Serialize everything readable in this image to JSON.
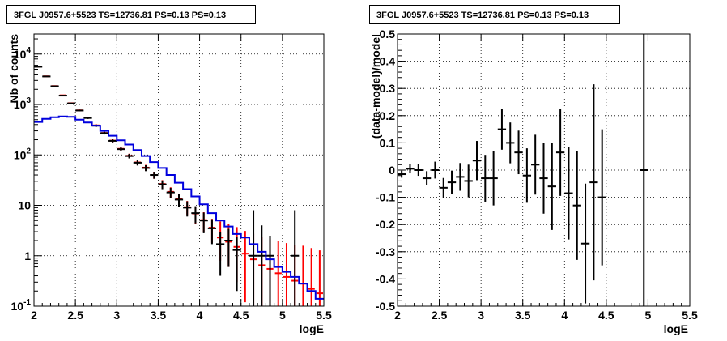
{
  "chart_data": [
    {
      "type": "histogram",
      "title": "3FGL J0957.6+5523 TS=12736.81 PS=0.13 PS=0.13",
      "xlabel": "logE",
      "ylabel": "Nb of counts",
      "xlim": [
        2,
        5.5
      ],
      "ylim": [
        0.1,
        25000
      ],
      "log_y": true,
      "grid": true,
      "x_ticks": [
        "2",
        "2.5",
        "3",
        "3.5",
        "4",
        "4.5",
        "5",
        "5.5"
      ],
      "y_ticks": [
        {
          "base": "10",
          "exp": "-1",
          "value": 0.1
        },
        {
          "base": "1",
          "exp": "",
          "value": 1
        },
        {
          "base": "10",
          "exp": "",
          "value": 10
        },
        {
          "base": "10",
          "exp": "2",
          "value": 100
        },
        {
          "base": "10",
          "exp": "3",
          "value": 1000
        },
        {
          "base": "10",
          "exp": "4",
          "value": 10000
        }
      ],
      "bin_edges": [
        2.0,
        2.1,
        2.2,
        2.3,
        2.4,
        2.5,
        2.6,
        2.7,
        2.8,
        2.9,
        3.0,
        3.1,
        3.2,
        3.3,
        3.4,
        3.5,
        3.6,
        3.7,
        3.8,
        3.9,
        4.0,
        4.1,
        4.2,
        4.3,
        4.4,
        4.5,
        4.6,
        4.7,
        4.8,
        4.9,
        5.0,
        5.1,
        5.2,
        5.3,
        5.4,
        5.5
      ],
      "series": [
        {
          "role": "data",
          "color": "#000000",
          "x": [
            2.05,
            2.15,
            2.25,
            2.35,
            2.45,
            2.55,
            2.65,
            2.75,
            2.85,
            2.95,
            3.05,
            3.15,
            3.25,
            3.35,
            3.45,
            3.55,
            3.65,
            3.75,
            3.85,
            3.95,
            4.05,
            4.15,
            4.25,
            4.35,
            4.45,
            4.65,
            4.75,
            4.85,
            5.15
          ],
          "y": [
            5600,
            3600,
            2300,
            1500,
            1050,
            760,
            540,
            380,
            270,
            190,
            130,
            95,
            70,
            55,
            40,
            26,
            18,
            13,
            9,
            7,
            5,
            3.5,
            1.7,
            2,
            1.3,
            1,
            1,
            1,
            1
          ],
          "err_low": [
            75,
            60,
            48,
            39,
            32,
            28,
            23,
            20,
            16,
            14,
            11,
            9.7,
            8.4,
            7.4,
            6.3,
            5.1,
            4.2,
            3.6,
            3,
            2.6,
            2.2,
            1.8,
            1.3,
            1.4,
            1.1,
            0.99,
            0.99,
            0.99,
            0.99
          ],
          "err_high": [
            75,
            60,
            48,
            39,
            32,
            28,
            23,
            20,
            16,
            14,
            11,
            9.7,
            8.4,
            7.4,
            6.3,
            5.1,
            4.2,
            3.6,
            3,
            2.6,
            2.2,
            1.8,
            1.3,
            1.4,
            1.1,
            7,
            3,
            1.5,
            7
          ]
        },
        {
          "role": "model-total",
          "color": "#ff0000",
          "y": [
            5650,
            3620,
            2320,
            1520,
            1060,
            765,
            545,
            385,
            272,
            192,
            132,
            96,
            71,
            56,
            40,
            26.5,
            18.5,
            13.2,
            9.2,
            6.9,
            5.1,
            3.6,
            2.3,
            1.9,
            1.5,
            1.1,
            0.85,
            0.65,
            0.55,
            0.45,
            0.38,
            0.32,
            0.28,
            0.22,
            0.18
          ],
          "err_low": [
            75,
            60,
            48,
            39,
            32,
            28,
            23,
            20,
            16,
            14,
            11.5,
            9.8,
            8.4,
            7.5,
            6.3,
            5.1,
            4.3,
            3.6,
            3,
            2.6,
            2.2,
            1.8,
            1.5,
            1.3,
            1.2,
            0.98,
            0.85,
            0.65,
            0.55,
            0.45,
            0.38,
            0.32,
            0.28,
            0.22,
            0.18
          ],
          "err_high": [
            75,
            60,
            48,
            39,
            32,
            28,
            23,
            20,
            16,
            14,
            11.5,
            9.8,
            8.4,
            7.5,
            6.3,
            5.1,
            4.3,
            3.6,
            3,
            2.6,
            2.2,
            1.8,
            2.5,
            2.3,
            2.2,
            2,
            1.9,
            1.7,
            1.6,
            1.5,
            1.4,
            1.3,
            1.3,
            1.2,
            1.1
          ]
        },
        {
          "role": "model-source",
          "color": "#0000dd",
          "y": [
            450,
            520,
            560,
            580,
            570,
            500,
            440,
            380,
            300,
            240,
            195,
            160,
            125,
            95,
            72,
            55,
            40,
            28,
            21,
            15,
            10.5,
            7,
            5,
            3.8,
            2.7,
            2.3,
            1.7,
            1.2,
            0.85,
            0.6,
            0.48,
            0.38,
            0.28,
            0.2,
            0.14
          ]
        }
      ]
    },
    {
      "type": "scatter",
      "title": "3FGL J0957.6+5523 TS=12736.81 PS=0.13 PS=0.13",
      "xlabel": "logE",
      "ylabel": "(data-model)/model",
      "xlim": [
        2,
        5.5
      ],
      "ylim": [
        -0.5,
        0.5
      ],
      "grid": true,
      "x_ticks": [
        "2",
        "2.5",
        "3",
        "3.5",
        "4",
        "4.5",
        "5",
        "5.5"
      ],
      "y_ticks": [
        "-0.5",
        "-0.4",
        "-0.3",
        "-0.2",
        "-0.1",
        "0",
        "0.1",
        "0.2",
        "0.3",
        "0.4",
        "0.5"
      ],
      "x": [
        2.05,
        2.15,
        2.25,
        2.35,
        2.45,
        2.55,
        2.65,
        2.75,
        2.85,
        2.95,
        3.05,
        3.15,
        3.25,
        3.35,
        3.45,
        3.55,
        3.65,
        3.75,
        3.85,
        3.95,
        4.05,
        4.15,
        4.25,
        4.35,
        4.45,
        4.95
      ],
      "y": [
        -0.015,
        0.005,
        0.0,
        -0.03,
        0.0,
        -0.065,
        -0.045,
        -0.025,
        -0.04,
        0.035,
        -0.03,
        -0.03,
        0.15,
        0.1,
        0.065,
        -0.02,
        0.02,
        -0.03,
        -0.06,
        0.065,
        -0.085,
        -0.13,
        -0.27,
        -0.045,
        -0.1,
        0.0
      ],
      "err": [
        0.013,
        0.017,
        0.021,
        0.026,
        0.031,
        0.036,
        0.043,
        0.051,
        0.06,
        0.072,
        0.086,
        0.1,
        0.075,
        0.075,
        0.08,
        0.1,
        0.11,
        0.13,
        0.16,
        0.16,
        0.17,
        0.2,
        0.22,
        0.36,
        0.25,
        0.6
      ],
      "color": "#000000"
    }
  ]
}
